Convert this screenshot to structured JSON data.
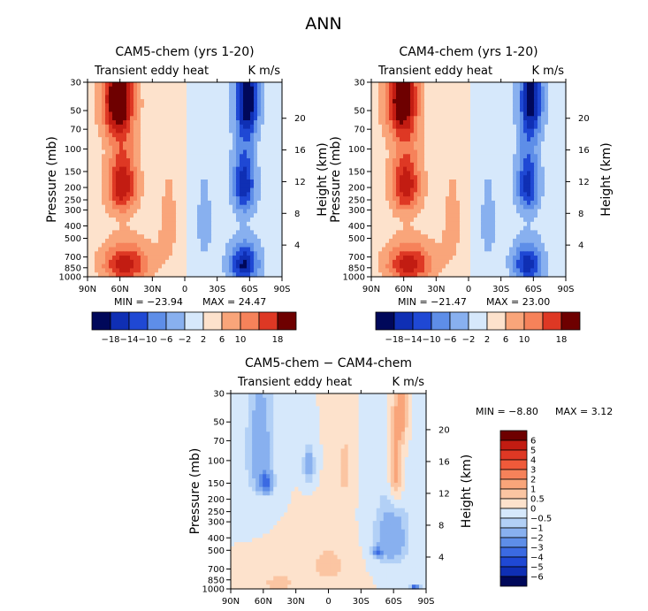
{
  "main_title": "ANN",
  "colors": {
    "warm": [
      "#fde2cc",
      "#fbc5a2",
      "#f9a57a",
      "#f6825a",
      "#ef5a3a",
      "#de3824",
      "#c21c12",
      "#9a0a08",
      "#6e0000"
    ],
    "cool": [
      "#d6e8fb",
      "#b2d0f6",
      "#88b0ef",
      "#5e8ee8",
      "#3b6ae2",
      "#1f48d4",
      "#0f2fb4",
      "#071a86",
      "#00085a"
    ]
  },
  "chart_data": [
    {
      "id": "panel1",
      "type": "heatmap",
      "title": "CAM5-chem (yrs 1-20)",
      "left_label": "Transient eddy heat",
      "right_label": "K m/s",
      "xlabel": "",
      "ylabel": "Pressure (mb)",
      "y2label": "Height (km)",
      "x_ticks": [
        "90N",
        "60N",
        "30N",
        "0",
        "30S",
        "60S",
        "90S"
      ],
      "y_ticks": [
        "30",
        "50",
        "70",
        "100",
        "150",
        "200",
        "250",
        "300",
        "400",
        "500",
        "700",
        "850",
        "1000"
      ],
      "y_tick_values": [
        30,
        50,
        70,
        100,
        150,
        200,
        250,
        300,
        400,
        500,
        700,
        850,
        1000
      ],
      "y2_ticks": [
        "20",
        "16",
        "12",
        "8",
        "4"
      ],
      "y2_tick_values": [
        20,
        16,
        12,
        8,
        4
      ],
      "ylim": [
        1000,
        30
      ],
      "xlim": [
        90,
        -90
      ],
      "min_label": "MIN = −23.94",
      "max_label": "MAX =  24.47",
      "colorbar": {
        "orientation": "horizontal",
        "labels": [
          "−18",
          "−14",
          "−10",
          "−6",
          "−2",
          "2",
          "6",
          "10",
          "18"
        ],
        "levels": [
          -18,
          -14,
          -10,
          -6,
          -2,
          2,
          6,
          10,
          14,
          18
        ]
      },
      "features": [
        {
          "lat": 62,
          "p": 40,
          "value": 22,
          "lat_width": 14,
          "p_width": 35
        },
        {
          "lat": 58,
          "p": 190,
          "value": 18,
          "lat_width": 13,
          "p_width": 110
        },
        {
          "lat": 55,
          "p": 800,
          "value": 17,
          "lat_width": 20,
          "p_width": 260
        },
        {
          "lat": -58,
          "p": 40,
          "value": -21,
          "lat_width": 10,
          "p_width": 35
        },
        {
          "lat": -55,
          "p": 190,
          "value": -17,
          "lat_width": 10,
          "p_width": 110
        },
        {
          "lat": -55,
          "p": 800,
          "value": -19,
          "lat_width": 13,
          "p_width": 260
        },
        {
          "lat": 15,
          "p": 400,
          "value": 2.5,
          "lat_width": 14,
          "p_width": 500
        },
        {
          "lat": -18,
          "p": 400,
          "value": -2.5,
          "lat_width": 13,
          "p_width": 500
        }
      ]
    },
    {
      "id": "panel2",
      "type": "heatmap",
      "title": "CAM4-chem (yrs 1-20)",
      "left_label": "Transient eddy heat",
      "right_label": "K m/s",
      "xlabel": "",
      "ylabel": "Pressure (mb)",
      "y2label": "Height (km)",
      "x_ticks": [
        "90N",
        "60N",
        "30N",
        "0",
        "30S",
        "60S",
        "90S"
      ],
      "y_ticks": [
        "30",
        "50",
        "70",
        "100",
        "150",
        "200",
        "250",
        "300",
        "400",
        "500",
        "700",
        "850",
        "1000"
      ],
      "y_tick_values": [
        30,
        50,
        70,
        100,
        150,
        200,
        250,
        300,
        400,
        500,
        700,
        850,
        1000
      ],
      "y2_ticks": [
        "20",
        "16",
        "12",
        "8",
        "4"
      ],
      "y2_tick_values": [
        20,
        16,
        12,
        8,
        4
      ],
      "ylim": [
        1000,
        30
      ],
      "xlim": [
        90,
        -90
      ],
      "min_label": "MIN = −21.47",
      "max_label": "MAX =  23.00",
      "colorbar": {
        "orientation": "horizontal",
        "labels": [
          "−18",
          "−14",
          "−10",
          "−6",
          "−2",
          "2",
          "6",
          "10",
          "18"
        ],
        "levels": [
          -18,
          -14,
          -10,
          -6,
          -2,
          2,
          6,
          10,
          14,
          18
        ]
      },
      "features": [
        {
          "lat": 62,
          "p": 40,
          "value": 21,
          "lat_width": 14,
          "p_width": 35
        },
        {
          "lat": 58,
          "p": 190,
          "value": 17,
          "lat_width": 13,
          "p_width": 110
        },
        {
          "lat": 55,
          "p": 800,
          "value": 17,
          "lat_width": 20,
          "p_width": 260
        },
        {
          "lat": -58,
          "p": 40,
          "value": -19,
          "lat_width": 10,
          "p_width": 35
        },
        {
          "lat": -55,
          "p": 190,
          "value": -16,
          "lat_width": 10,
          "p_width": 110
        },
        {
          "lat": -55,
          "p": 800,
          "value": -17,
          "lat_width": 13,
          "p_width": 260
        },
        {
          "lat": 15,
          "p": 400,
          "value": 2.5,
          "lat_width": 14,
          "p_width": 500
        },
        {
          "lat": -18,
          "p": 400,
          "value": -2.5,
          "lat_width": 13,
          "p_width": 500
        }
      ]
    },
    {
      "id": "panel3",
      "type": "heatmap",
      "title": "CAM5-chem − CAM4-chem",
      "left_label": "Transient eddy heat",
      "right_label": "K m/s",
      "xlabel": "",
      "ylabel": "Pressure (mb)",
      "y2label": "Height (km)",
      "x_ticks": [
        "90N",
        "60N",
        "30N",
        "0",
        "30S",
        "60S",
        "90S"
      ],
      "y_ticks": [
        "30",
        "50",
        "70",
        "100",
        "150",
        "200",
        "250",
        "300",
        "400",
        "500",
        "700",
        "850",
        "1000"
      ],
      "y_tick_values": [
        30,
        50,
        70,
        100,
        150,
        200,
        250,
        300,
        400,
        500,
        700,
        850,
        1000
      ],
      "y2_ticks": [
        "20",
        "16",
        "12",
        "8",
        "4"
      ],
      "y2_tick_values": [
        20,
        16,
        12,
        8,
        4
      ],
      "ylim": [
        1000,
        30
      ],
      "xlim": [
        90,
        -90
      ],
      "min_label": "MIN =   −8.80",
      "max_label": "MAX =    3.12",
      "colorbar": {
        "orientation": "vertical",
        "labels": [
          "6",
          "5",
          "4",
          "3",
          "2",
          "1",
          "0.5",
          "0",
          "−0.5",
          "−1",
          "−2",
          "−3",
          "−4",
          "−5",
          "−6"
        ],
        "levels": [
          -6,
          -5,
          -4,
          -3,
          -2,
          -1,
          -0.5,
          0,
          0.5,
          1,
          2,
          3,
          4,
          5,
          6
        ]
      },
      "features": [
        {
          "lat": 63,
          "p": 85,
          "value": -1.6,
          "lat_width": 12,
          "p_width": 90
        },
        {
          "lat": 58,
          "p": 150,
          "value": -3.2,
          "lat_width": 6,
          "p_width": 25
        },
        {
          "lat": 18,
          "p": 110,
          "value": -1.6,
          "lat_width": 5,
          "p_width": 35
        },
        {
          "lat": -58,
          "p": 400,
          "value": -1.8,
          "lat_width": 15,
          "p_width": 220
        },
        {
          "lat": -45,
          "p": 520,
          "value": -3.1,
          "lat_width": 4,
          "p_width": 40
        },
        {
          "lat": -62,
          "p": 120,
          "value": 1.7,
          "lat_width": 6,
          "p_width": 90
        },
        {
          "lat": -68,
          "p": 40,
          "value": 1.4,
          "lat_width": 5,
          "p_width": 25
        },
        {
          "lat": 45,
          "p": 900,
          "value": 0.9,
          "lat_width": 15,
          "p_width": 120
        },
        {
          "lat": -80,
          "p": 975,
          "value": -4.5,
          "lat_width": 4,
          "p_width": 25
        },
        {
          "lat": -15,
          "p": 120,
          "value": 0.7,
          "lat_width": 6,
          "p_width": 80
        },
        {
          "lat": 0,
          "p": 650,
          "value": 0.7,
          "lat_width": 20,
          "p_width": 250
        }
      ]
    }
  ]
}
